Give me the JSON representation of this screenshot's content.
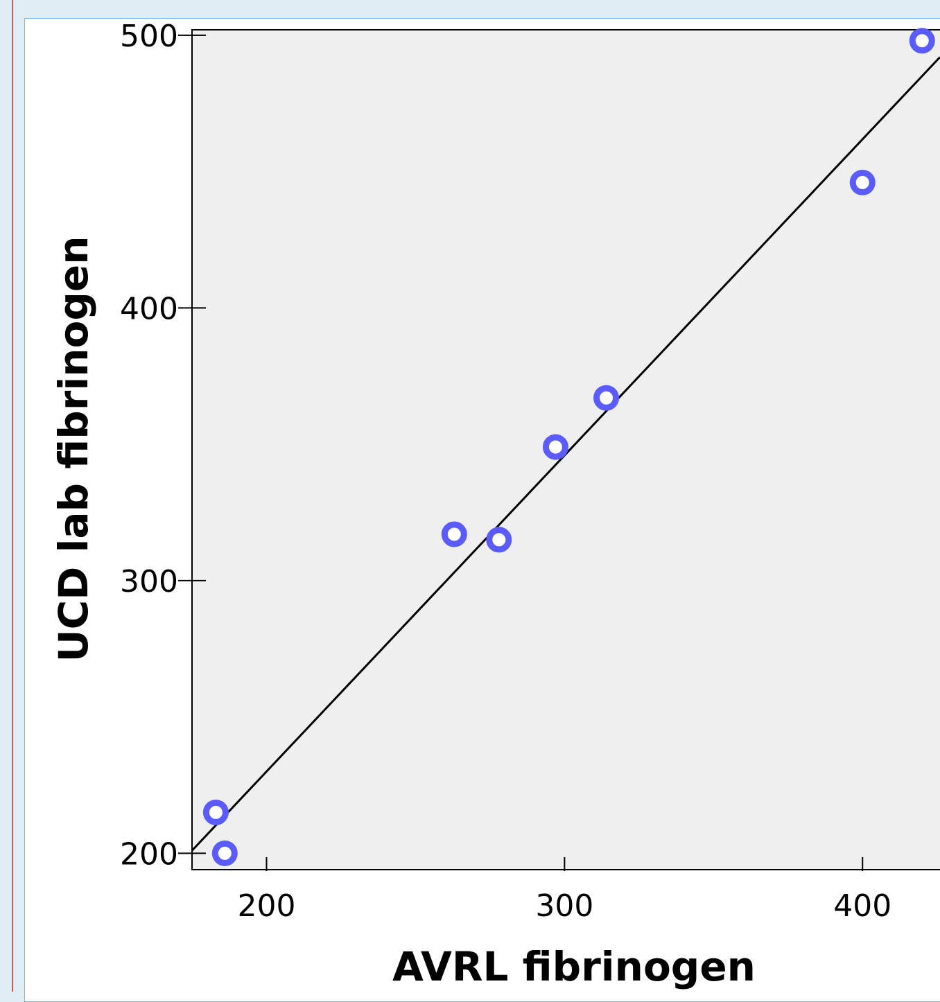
{
  "chart_data": {
    "type": "scatter",
    "title": "",
    "xlabel": "AVRL fibrinogen",
    "ylabel": "UCD lab fibrinogen",
    "xlim": [
      175,
      426
    ],
    "ylim": [
      194,
      502
    ],
    "x_ticks": [
      200,
      300,
      400
    ],
    "y_ticks": [
      200,
      300,
      400,
      500
    ],
    "grid": false,
    "series": [
      {
        "points": [
          {
            "x": 183,
            "y": 215
          },
          {
            "x": 186,
            "y": 200
          },
          {
            "x": 263,
            "y": 317
          },
          {
            "x": 278,
            "y": 315
          },
          {
            "x": 297,
            "y": 349
          },
          {
            "x": 314,
            "y": 367
          },
          {
            "x": 400,
            "y": 446
          },
          {
            "x": 420,
            "y": 498
          }
        ]
      }
    ],
    "fit_line": {
      "x": [
        175,
        426
      ],
      "y": [
        201,
        492
      ]
    },
    "colors": {
      "marker": "#5a5cff",
      "plot_background": "#efefef",
      "fit_line": "#000000"
    }
  }
}
